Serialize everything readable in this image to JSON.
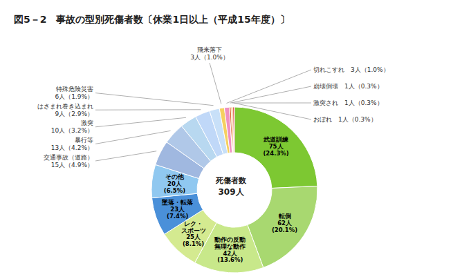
{
  "chart_data": {
    "type": "pie",
    "title": "図5－2　事故の型別死傷者数〔休業1日以上（平成15年度）〕",
    "categories": [
      "武道訓練\n75人\n(24.3%)",
      "転倒\n62人\n(20.1%)",
      "動作の反動\n無理な動作\n42人\n(13.6%)",
      "レク・\nスポーツ\n25人\n(8.1%)",
      "墜落・転落\n23人\n(7.4%)",
      "その他\n20人\n(6.5%)",
      "交通事故（道路）\n15人（4.9%）",
      "暴行等\n13人（4.2%）",
      "激突\n10人（3.2%）",
      "はさまれ巻き込まれ\n9人（2.9%）",
      "特殊危険災害\n6人（1.9%）",
      "飛来落下\n3人（1.0%）",
      "切れこすれ　3人（1.0%）",
      "崩壊倒壊　1人（0.3%）",
      "激突され　1人（0.3%）",
      "おぼれ　1人（0.3%）"
    ],
    "values": [
      75,
      62,
      42,
      25,
      23,
      20,
      15,
      13,
      10,
      9,
      6,
      3,
      3,
      1,
      1,
      1
    ],
    "colors": [
      "#7dc832",
      "#a8d870",
      "#c8e88a",
      "#d4ea90",
      "#4a90d9",
      "#90c8f0",
      "#a0b8e0",
      "#b0c8e8",
      "#b8d8f0",
      "#c0d8f8",
      "#c8e0f8",
      "#f5d060",
      "#f090c0",
      "#e06030",
      "#f0a040",
      "#e05050"
    ],
    "annotations": [
      "死傷者数",
      "309人"
    ]
  }
}
